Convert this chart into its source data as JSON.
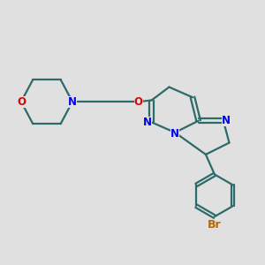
{
  "background_color": "#e0e0e0",
  "bond_color": "#2d6b6b",
  "n_color": "#0000ee",
  "o_color": "#dd0000",
  "br_color": "#bb6600",
  "line_width": 1.6,
  "font_size": 8.5,
  "xlim": [
    0.5,
    9.5
  ],
  "ylim": [
    2.0,
    9.5
  ]
}
